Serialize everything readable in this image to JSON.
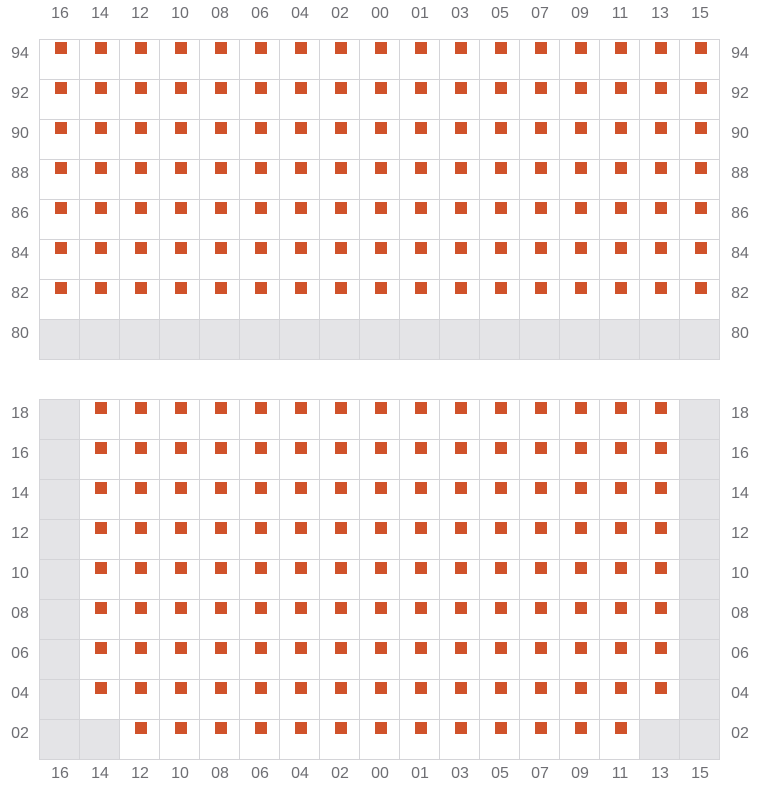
{
  "colors": {
    "seat": "#d0522a",
    "blocked": "#e4e4e7",
    "grid": "#d4d4d8",
    "label": "#6e6e73"
  },
  "columns": [
    "16",
    "14",
    "12",
    "10",
    "08",
    "06",
    "04",
    "02",
    "00",
    "01",
    "03",
    "05",
    "07",
    "09",
    "11",
    "13",
    "15"
  ],
  "legend_note": "x = seat, - = unavailable",
  "sections": [
    {
      "name": "upper",
      "rows": [
        {
          "label": "94",
          "cells": "xxxxxxxxxxxxxxxxx"
        },
        {
          "label": "92",
          "cells": "xxxxxxxxxxxxxxxxx"
        },
        {
          "label": "90",
          "cells": "xxxxxxxxxxxxxxxxx"
        },
        {
          "label": "88",
          "cells": "xxxxxxxxxxxxxxxxx"
        },
        {
          "label": "86",
          "cells": "xxxxxxxxxxxxxxxxx"
        },
        {
          "label": "84",
          "cells": "xxxxxxxxxxxxxxxxx"
        },
        {
          "label": "82",
          "cells": "xxxxxxxxxxxxxxxxx"
        },
        {
          "label": "80",
          "cells": "-----------------"
        }
      ]
    },
    {
      "name": "lower",
      "rows": [
        {
          "label": "18",
          "cells": "-xxxxxxxxxxxxxxx-"
        },
        {
          "label": "16",
          "cells": "-xxxxxxxxxxxxxxx-"
        },
        {
          "label": "14",
          "cells": "-xxxxxxxxxxxxxxx-"
        },
        {
          "label": "12",
          "cells": "-xxxxxxxxxxxxxxx-"
        },
        {
          "label": "10",
          "cells": "-xxxxxxxxxxxxxxx-"
        },
        {
          "label": "08",
          "cells": "-xxxxxxxxxxxxxxx-"
        },
        {
          "label": "06",
          "cells": "-xxxxxxxxxxxxxxx-"
        },
        {
          "label": "04",
          "cells": "-xxxxxxxxxxxxxxx-"
        },
        {
          "label": "02",
          "cells": "--xxxxxxxxxxxxx--"
        }
      ]
    }
  ]
}
